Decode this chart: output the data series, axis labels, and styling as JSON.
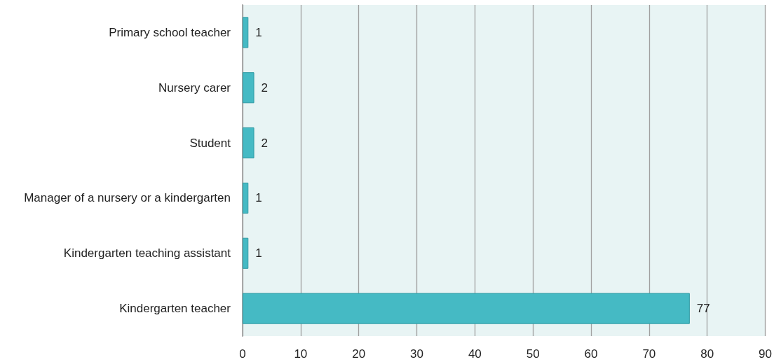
{
  "chart_data": {
    "type": "bar",
    "orientation": "horizontal",
    "categories": [
      "Primary school teacher",
      "Nursery carer",
      "Student",
      "Manager of a nursery or a kindergarten",
      "Kindergarten teaching assistant",
      "Kindergarten teacher"
    ],
    "values": [
      1,
      2,
      2,
      1,
      1,
      77
    ],
    "color": "#45bac4",
    "xlim": [
      0,
      90
    ],
    "xticks": [
      0,
      10,
      20,
      30,
      40,
      50,
      60,
      70,
      80,
      90
    ],
    "grid": "x",
    "data_labels": true
  }
}
